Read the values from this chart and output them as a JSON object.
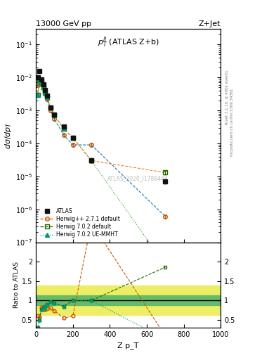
{
  "title_left": "13000 GeV pp",
  "title_right": "Z+Jet",
  "ylabel_main": "dσ/dp_T",
  "ylabel_ratio": "Ratio to ATLAS",
  "xlabel": "Z p_T",
  "annotation_main": "p_T^{ll} (ATLAS Z+b)",
  "annotation_id": "ATLAS_2020_I1788444",
  "right_label_top": "Rivet 3.1.10, ≥ 400k events",
  "right_label_bot": "mcplots.cern.ch [arXiv:1306.3436]",
  "atlas_x": [
    10,
    20,
    30,
    40,
    50,
    60,
    80,
    100,
    150,
    200,
    300,
    700
  ],
  "atlas_y": [
    0.01,
    0.016,
    0.0085,
    0.0062,
    0.0042,
    0.0028,
    0.00125,
    0.00075,
    0.00033,
    0.00015,
    3e-05,
    7e-06
  ],
  "atlas_yerr": [
    0.0008,
    0.0012,
    0.0007,
    0.0005,
    0.00035,
    0.00025,
    0.0001,
    6e-05,
    2.5e-05,
    1.2e-05,
    3e-06,
    8e-07
  ],
  "hpp_x": [
    10,
    20,
    30,
    40,
    50,
    60,
    80,
    100,
    150,
    200,
    300,
    700
  ],
  "hpp_y": [
    0.006,
    0.009,
    0.007,
    0.0048,
    0.0032,
    0.0022,
    0.001,
    0.00055,
    0.00018,
    9e-05,
    9e-05,
    6e-07
  ],
  "hpp_yerr": [
    0.0005,
    0.0008,
    0.0006,
    0.0004,
    0.0003,
    0.0002,
    0.0001,
    5e-05,
    1.5e-05,
    8e-06,
    8e-06,
    6e-08
  ],
  "h702d_x": [
    10,
    20,
    30,
    40,
    50,
    60,
    80,
    100,
    150,
    200,
    300,
    700
  ],
  "h702d_y": [
    0.003,
    0.008,
    0.0065,
    0.005,
    0.0035,
    0.0025,
    0.0012,
    0.0007,
    0.00028,
    0.00015,
    3e-05,
    1.3e-05
  ],
  "h702d_yerr": [
    0.0003,
    0.0007,
    0.0006,
    0.00045,
    0.0003,
    0.00025,
    0.00012,
    7e-05,
    2.5e-05,
    1.4e-05,
    4e-06,
    1.5e-06
  ],
  "h702ue_x": [
    10,
    20,
    30,
    40,
    50,
    60,
    80,
    100,
    150,
    200,
    300,
    700
  ],
  "h702ue_y": [
    0.003,
    0.008,
    0.0065,
    0.005,
    0.0035,
    0.0025,
    0.0012,
    0.0007,
    0.00028,
    0.00015,
    3e-05,
    2e-08
  ],
  "h702ue_yerr": [
    0.0003,
    0.0007,
    0.0006,
    0.00045,
    0.0003,
    0.00025,
    0.00012,
    7e-05,
    2.5e-05,
    1.4e-05,
    4e-06,
    5e-09
  ],
  "ratio_band_stat_lo": 0.87,
  "ratio_band_stat_hi": 1.13,
  "ratio_band_sys_lo": 0.62,
  "ratio_band_sys_hi": 1.38,
  "color_atlas": "#111111",
  "color_hpp": "#cc5500",
  "color_h702d": "#226600",
  "color_h702ue": "#009977",
  "xlim": [
    0,
    1000
  ],
  "ylim_main": [
    1e-07,
    0.3
  ],
  "ylim_ratio": [
    0.3,
    2.5
  ]
}
